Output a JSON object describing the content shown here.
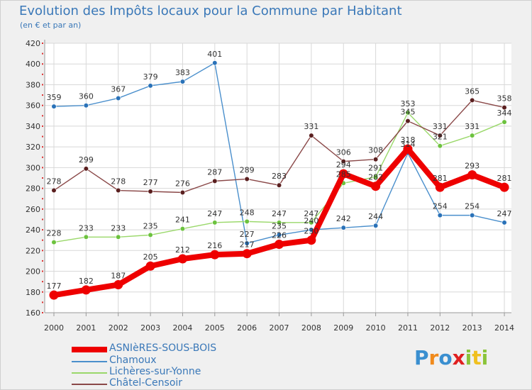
{
  "header": {
    "title": "Evolution des Impôts locaux pour la Commune par Habitant",
    "subtitle": "(en € et par an)"
  },
  "logo": {
    "text": "Proxiti"
  },
  "chart_data": {
    "type": "line",
    "title": "Evolution des Impôts locaux pour la Commune par Habitant",
    "subtitle": "(en € et par an)",
    "xlabel": "",
    "ylabel": "",
    "ylim": [
      160,
      420
    ],
    "yticks": [
      160,
      180,
      200,
      220,
      240,
      260,
      280,
      300,
      320,
      340,
      360,
      380,
      400,
      420
    ],
    "categories": [
      "2000",
      "2001",
      "2002",
      "2003",
      "2004",
      "2005",
      "2006",
      "2007",
      "2008",
      "2009",
      "2010",
      "2011",
      "2012",
      "2013",
      "2014"
    ],
    "grid": true,
    "legend_position": "bottom-left",
    "series": [
      {
        "name": "Chamoux",
        "color": "#4a8fcc",
        "marker": "#2a72b8",
        "values": [
          359,
          360,
          367,
          379,
          383,
          401,
          227,
          235,
          240,
          242,
          244,
          314,
          254,
          254,
          247
        ],
        "labels": [
          "359",
          "360",
          "367",
          "379",
          "383",
          "401",
          "227",
          "235",
          "240",
          "242",
          "244",
          "314",
          "254",
          "254",
          "247"
        ]
      },
      {
        "name": "Lichères-sur-Yonne",
        "color": "#9ad86a",
        "marker": "#6cc23e",
        "values": [
          228,
          233,
          233,
          235,
          241,
          247,
          248,
          247,
          247,
          285,
          291,
          353,
          321,
          331,
          344
        ],
        "labels": [
          "228",
          "233",
          "233",
          "235",
          "241",
          "247",
          "248",
          "247",
          "247",
          "285",
          "291",
          "353",
          "321",
          "331",
          "344"
        ]
      },
      {
        "name": "Châtel-Censoir",
        "color": "#8a4848",
        "marker": "#5a1f1f",
        "values": [
          278,
          299,
          278,
          277,
          276,
          287,
          289,
          283,
          331,
          306,
          308,
          345,
          331,
          365,
          358
        ],
        "labels": [
          "278",
          "299",
          "278",
          "277",
          "276",
          "287",
          "289",
          "283",
          "331",
          "306",
          "308",
          "345",
          "331",
          "365",
          "358"
        ]
      },
      {
        "name": "ASNIèRES-SOUS-BOIS",
        "color": "#ee0000",
        "marker": "#ee0000",
        "values": [
          177,
          182,
          187,
          205,
          212,
          216,
          217,
          226,
          230,
          294,
          282,
          318,
          281,
          293,
          281
        ],
        "labels": [
          "177",
          "182",
          "187",
          "205",
          "212",
          "216",
          "217",
          "226",
          "230",
          "294",
          "282",
          "318",
          "281",
          "293",
          "281"
        ]
      }
    ],
    "legend": [
      {
        "name": "ASNIèRES-SOUS-BOIS",
        "color": "#ee0000"
      },
      {
        "name": "Chamoux",
        "color": "#4a8fcc"
      },
      {
        "name": "Lichères-sur-Yonne",
        "color": "#9ad86a"
      },
      {
        "name": "Châtel-Censoir",
        "color": "#8a4848"
      }
    ]
  }
}
